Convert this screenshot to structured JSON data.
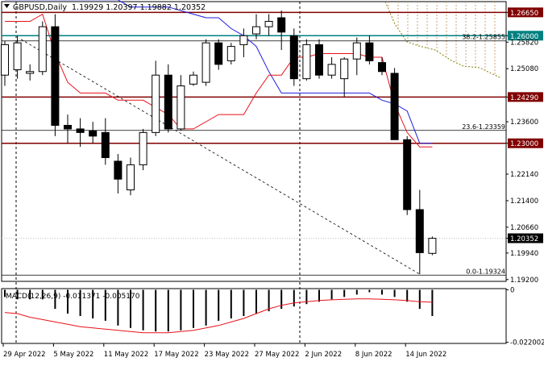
{
  "header": {
    "symbol_timeframe": "GBPUSD,Daily",
    "ohlc": "1.19929 1.20397 1.19882 1.20352"
  },
  "macd_label": "MACD(12,26,9) -0.011371 -0.005170",
  "colors": {
    "bull_candle": "#ffffff",
    "bear_candle": "#000000",
    "red_line": "#e8121b",
    "blue_line": "#1f1fdf",
    "dark_red_level": "#800000",
    "teal_level": "#008080",
    "olive_cloud": "#808000",
    "trendline": "#000000"
  },
  "chart_data": [
    {
      "type": "candlestick",
      "x_tick_labels": [
        "29 Apr 2022",
        "5 May 2022",
        "11 May 2022",
        "17 May 2022",
        "23 May 2022",
        "27 May 2022",
        "2 Jun 2022",
        "8 Jun 2022",
        "14 Jun 2022"
      ],
      "y_tick_labels": [
        "1.26650",
        "1.26000",
        "1.25820",
        "1.25080",
        "1.24290",
        "1.23600",
        "1.23000",
        "1.22140",
        "1.21400",
        "1.20660",
        "1.20352",
        "1.19940",
        "1.19200"
      ],
      "ylim": [
        1.1915,
        1.2695
      ],
      "candles": [
        {
          "o": 1.249,
          "h": 1.2585,
          "l": 1.246,
          "c": 1.2575
        },
        {
          "o": 1.2505,
          "h": 1.26,
          "l": 1.248,
          "c": 1.258
        },
        {
          "o": 1.2495,
          "h": 1.252,
          "l": 1.2475,
          "c": 1.25
        },
        {
          "o": 1.25,
          "h": 1.264,
          "l": 1.249,
          "c": 1.2625
        },
        {
          "o": 1.2625,
          "h": 1.266,
          "l": 1.232,
          "c": 1.235
        },
        {
          "o": 1.235,
          "h": 1.238,
          "l": 1.23,
          "c": 1.234
        },
        {
          "o": 1.234,
          "h": 1.237,
          "l": 1.229,
          "c": 1.233
        },
        {
          "o": 1.2335,
          "h": 1.236,
          "l": 1.23,
          "c": 1.232
        },
        {
          "o": 1.233,
          "h": 1.237,
          "l": 1.224,
          "c": 1.226
        },
        {
          "o": 1.225,
          "h": 1.227,
          "l": 1.216,
          "c": 1.22
        },
        {
          "o": 1.217,
          "h": 1.226,
          "l": 1.2155,
          "c": 1.224
        },
        {
          "o": 1.224,
          "h": 1.234,
          "l": 1.2225,
          "c": 1.233
        },
        {
          "o": 1.233,
          "h": 1.253,
          "l": 1.232,
          "c": 1.249
        },
        {
          "o": 1.249,
          "h": 1.252,
          "l": 1.233,
          "c": 1.234
        },
        {
          "o": 1.234,
          "h": 1.249,
          "l": 1.2335,
          "c": 1.246
        },
        {
          "o": 1.2465,
          "h": 1.25,
          "l": 1.246,
          "c": 1.249
        },
        {
          "o": 1.247,
          "h": 1.259,
          "l": 1.246,
          "c": 1.258
        },
        {
          "o": 1.258,
          "h": 1.259,
          "l": 1.2505,
          "c": 1.252
        },
        {
          "o": 1.253,
          "h": 1.258,
          "l": 1.252,
          "c": 1.257
        },
        {
          "o": 1.2575,
          "h": 1.262,
          "l": 1.254,
          "c": 1.26
        },
        {
          "o": 1.2605,
          "h": 1.266,
          "l": 1.259,
          "c": 1.2625
        },
        {
          "o": 1.2625,
          "h": 1.266,
          "l": 1.26,
          "c": 1.264
        },
        {
          "o": 1.265,
          "h": 1.267,
          "l": 1.256,
          "c": 1.261
        },
        {
          "o": 1.26,
          "h": 1.262,
          "l": 1.246,
          "c": 1.248
        },
        {
          "o": 1.248,
          "h": 1.259,
          "l": 1.2475,
          "c": 1.2575
        },
        {
          "o": 1.2575,
          "h": 1.259,
          "l": 1.248,
          "c": 1.249
        },
        {
          "o": 1.249,
          "h": 1.254,
          "l": 1.248,
          "c": 1.252
        },
        {
          "o": 1.248,
          "h": 1.254,
          "l": 1.243,
          "c": 1.2535
        },
        {
          "o": 1.2535,
          "h": 1.2595,
          "l": 1.249,
          "c": 1.258
        },
        {
          "o": 1.258,
          "h": 1.26,
          "l": 1.252,
          "c": 1.253
        },
        {
          "o": 1.2525,
          "h": 1.254,
          "l": 1.249,
          "c": 1.25
        },
        {
          "o": 1.2495,
          "h": 1.251,
          "l": 1.231,
          "c": 1.231
        },
        {
          "o": 1.231,
          "h": 1.232,
          "l": 1.21,
          "c": 1.2115
        },
        {
          "o": 1.2115,
          "h": 1.217,
          "l": 1.1935,
          "c": 1.1995
        },
        {
          "o": 1.1993,
          "h": 1.204,
          "l": 1.1988,
          "c": 1.2035
        }
      ],
      "red_line": [
        1.264,
        1.264,
        1.264,
        1.266,
        1.255,
        1.247,
        1.244,
        1.244,
        1.244,
        1.242,
        1.242,
        1.242,
        1.24,
        1.238,
        1.234,
        1.234,
        1.236,
        1.238,
        1.238,
        1.238,
        1.244,
        1.249,
        1.249,
        1.254,
        1.254,
        1.255,
        1.255,
        1.255,
        1.255,
        1.254,
        1.254,
        1.241,
        1.233,
        1.229,
        1.229
      ],
      "blue_line": [
        1.27,
        1.27,
        1.27,
        1.27,
        1.27,
        1.27,
        1.27,
        1.27,
        1.27,
        1.27,
        1.268,
        1.268,
        1.268,
        1.268,
        1.267,
        1.266,
        1.265,
        1.265,
        1.262,
        1.26,
        1.257,
        1.25,
        1.244,
        1.244,
        1.244,
        1.244,
        1.244,
        1.244,
        1.244,
        1.244,
        1.242,
        1.241,
        1.239,
        1.23,
        1.23
      ],
      "levels": [
        {
          "label": "1.26650",
          "value": 1.2665,
          "kind": "dark-red"
        },
        {
          "label": "1.26000",
          "value": 1.26,
          "kind": "teal"
        },
        {
          "label": "1.24290",
          "value": 1.2429,
          "kind": "dark-red"
        },
        {
          "label": "1.23000",
          "value": 1.23,
          "kind": "dark-red"
        },
        {
          "label": "1.20352",
          "value": 1.20352,
          "kind": "current"
        }
      ],
      "fibonacci": [
        {
          "label": "38.2-1.25855",
          "value": 1.25855
        },
        {
          "label": "23.6-1.23359",
          "value": 1.23359
        },
        {
          "label": "0.0-1.19324",
          "value": 1.19324
        }
      ]
    },
    {
      "type": "histogram",
      "name": "MACD(12,26,9)",
      "y_tick_labels": [
        "0",
        "-0.022002"
      ],
      "ylim": [
        -0.0225,
        0.0005
      ],
      "histogram": [
        -0.003,
        -0.004,
        -0.004,
        -0.004,
        -0.008,
        -0.01,
        -0.011,
        -0.012,
        -0.013,
        -0.015,
        -0.016,
        -0.017,
        -0.0175,
        -0.0175,
        -0.017,
        -0.016,
        -0.015,
        -0.013,
        -0.012,
        -0.011,
        -0.01,
        -0.009,
        -0.008,
        -0.007,
        -0.006,
        -0.005,
        -0.004,
        -0.003,
        -0.002,
        -0.001,
        -0.002,
        -0.003,
        -0.005,
        -0.008,
        -0.011
      ],
      "signal": [
        -0.0095,
        -0.01,
        -0.0115,
        -0.0125,
        -0.0135,
        -0.0145,
        -0.0155,
        -0.016,
        -0.0165,
        -0.017,
        -0.0175,
        -0.018,
        -0.018,
        -0.018,
        -0.0175,
        -0.017,
        -0.016,
        -0.015,
        -0.0135,
        -0.012,
        -0.01,
        -0.008,
        -0.0065,
        -0.0055,
        -0.005,
        -0.0045,
        -0.0042,
        -0.004,
        -0.0038,
        -0.0038,
        -0.004,
        -0.0042,
        -0.0045,
        -0.005,
        -0.0052
      ]
    }
  ]
}
